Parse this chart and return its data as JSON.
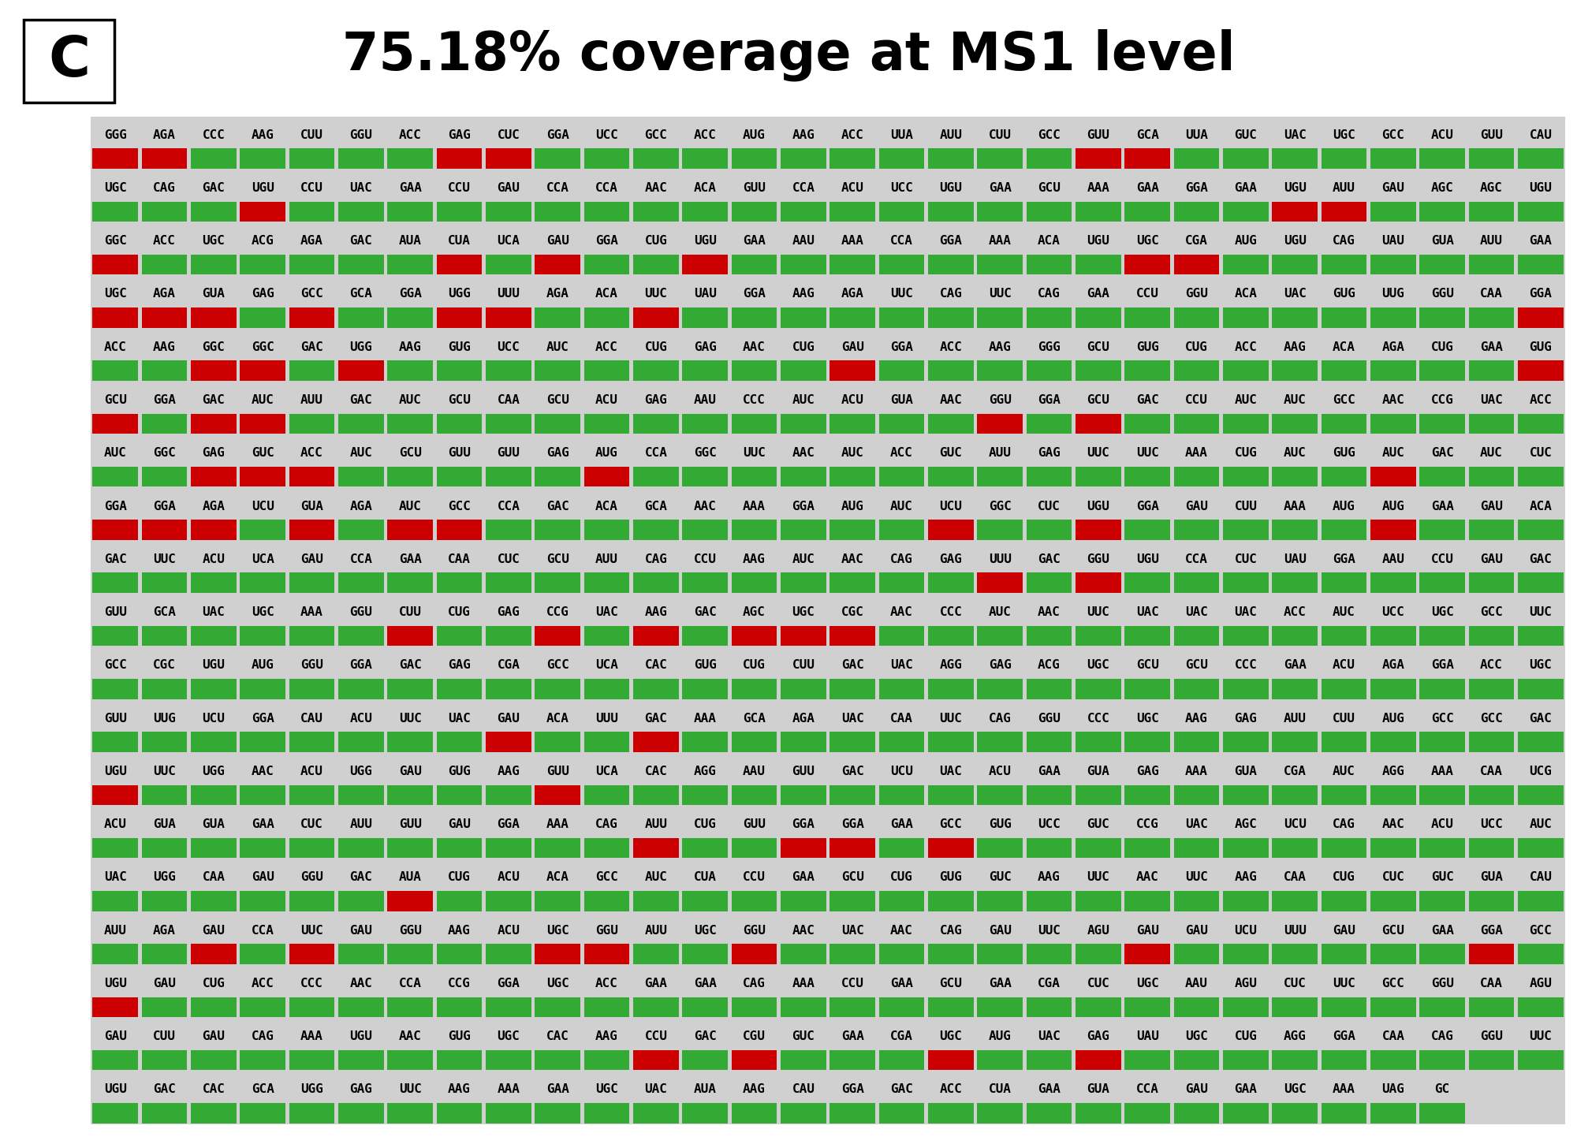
{
  "title": "75.18% coverage at MS1 level",
  "panel_label": "C",
  "bg_color": "#d0d0d0",
  "rows": [
    {
      "codons": [
        "GGG",
        "AGA",
        "CCC",
        "AAG",
        "CUU",
        "GGU",
        "ACC",
        "GAG",
        "CUC",
        "GGA",
        "UCC",
        "GCC",
        "ACC",
        "AUG",
        "AAG",
        "ACC",
        "UUA",
        "AUU",
        "CUU",
        "GCC",
        "GUU",
        "GCA",
        "UUA",
        "GUC",
        "UAC",
        "UGC",
        "GCC",
        "ACU",
        "GUU",
        "CAU"
      ],
      "colors": [
        "red",
        "red",
        "green",
        "green",
        "green",
        "green",
        "green",
        "red",
        "red",
        "green",
        "green",
        "green",
        "green",
        "green",
        "green",
        "green",
        "green",
        "green",
        "green",
        "green",
        "red",
        "red",
        "green",
        "green",
        "green",
        "green",
        "green",
        "green",
        "green",
        "green"
      ]
    },
    {
      "codons": [
        "UGC",
        "CAG",
        "GAC",
        "UGU",
        "CCU",
        "UAC",
        "GAA",
        "CCU",
        "GAU",
        "CCA",
        "CCA",
        "AAC",
        "ACA",
        "GUU",
        "CCA",
        "ACU",
        "UCC",
        "UGU",
        "GAA",
        "GCU",
        "AAA",
        "GAA",
        "GGA",
        "GAA",
        "UGU",
        "AUU",
        "GAU",
        "AGC",
        "AGC",
        "UGU"
      ],
      "colors": [
        "green",
        "green",
        "green",
        "red",
        "green",
        "green",
        "green",
        "green",
        "green",
        "green",
        "green",
        "green",
        "green",
        "green",
        "green",
        "green",
        "green",
        "green",
        "green",
        "green",
        "green",
        "green",
        "green",
        "green",
        "red",
        "red",
        "green",
        "green",
        "green",
        "green"
      ]
    },
    {
      "codons": [
        "GGC",
        "ACC",
        "UGC",
        "ACG",
        "AGA",
        "GAC",
        "AUA",
        "CUA",
        "UCA",
        "GAU",
        "GGA",
        "CUG",
        "UGU",
        "GAA",
        "AAU",
        "AAA",
        "CCA",
        "GGA",
        "AAA",
        "ACA",
        "UGU",
        "UGC",
        "CGA",
        "AUG",
        "UGU",
        "CAG",
        "UAU",
        "GUA",
        "AUU",
        "GAA"
      ],
      "colors": [
        "red",
        "green",
        "green",
        "green",
        "green",
        "green",
        "green",
        "red",
        "green",
        "red",
        "green",
        "green",
        "red",
        "green",
        "green",
        "green",
        "green",
        "green",
        "green",
        "green",
        "green",
        "red",
        "red",
        "green",
        "green",
        "green",
        "green",
        "green",
        "green",
        "green"
      ]
    },
    {
      "codons": [
        "UGC",
        "AGA",
        "GUA",
        "GAG",
        "GCC",
        "GCA",
        "GGA",
        "UGG",
        "UUU",
        "AGA",
        "ACA",
        "UUC",
        "UAU",
        "GGA",
        "AAG",
        "AGA",
        "UUC",
        "CAG",
        "UUC",
        "CAG",
        "GAA",
        "CCU",
        "GGU",
        "ACA",
        "UAC",
        "GUG",
        "UUG",
        "GGU",
        "CAA",
        "GGA"
      ],
      "colors": [
        "red",
        "red",
        "red",
        "green",
        "red",
        "green",
        "green",
        "red",
        "red",
        "green",
        "green",
        "red",
        "green",
        "green",
        "green",
        "green",
        "green",
        "green",
        "green",
        "green",
        "green",
        "green",
        "green",
        "green",
        "green",
        "green",
        "green",
        "green",
        "green",
        "red"
      ]
    },
    {
      "codons": [
        "ACC",
        "AAG",
        "GGC",
        "GGC",
        "GAC",
        "UGG",
        "AAG",
        "GUG",
        "UCC",
        "AUC",
        "ACC",
        "CUG",
        "GAG",
        "AAC",
        "CUG",
        "GAU",
        "GGA",
        "ACC",
        "AAG",
        "GGG",
        "GCU",
        "GUG",
        "CUG",
        "ACC",
        "AAG",
        "ACA",
        "AGA",
        "CUG",
        "GAA",
        "GUG"
      ],
      "colors": [
        "green",
        "green",
        "red",
        "red",
        "green",
        "red",
        "green",
        "green",
        "green",
        "green",
        "green",
        "green",
        "green",
        "green",
        "green",
        "red",
        "green",
        "green",
        "green",
        "green",
        "green",
        "green",
        "green",
        "green",
        "green",
        "green",
        "green",
        "green",
        "green",
        "red"
      ]
    },
    {
      "codons": [
        "GCU",
        "GGA",
        "GAC",
        "AUC",
        "AUU",
        "GAC",
        "AUC",
        "GCU",
        "CAA",
        "GCU",
        "ACU",
        "GAG",
        "AAU",
        "CCC",
        "AUC",
        "ACU",
        "GUA",
        "AAC",
        "GGU",
        "GGA",
        "GCU",
        "GAC",
        "CCU",
        "AUC",
        "AUC",
        "GCC",
        "AAC",
        "CCG",
        "UAC",
        "ACC"
      ],
      "colors": [
        "red",
        "green",
        "red",
        "red",
        "green",
        "green",
        "green",
        "green",
        "green",
        "green",
        "green",
        "green",
        "green",
        "green",
        "green",
        "green",
        "green",
        "green",
        "red",
        "green",
        "red",
        "green",
        "green",
        "green",
        "green",
        "green",
        "green",
        "green",
        "green",
        "green"
      ]
    },
    {
      "codons": [
        "AUC",
        "GGC",
        "GAG",
        "GUC",
        "ACC",
        "AUC",
        "GCU",
        "GUU",
        "GUU",
        "GAG",
        "AUG",
        "CCA",
        "GGC",
        "UUC",
        "AAC",
        "AUC",
        "ACC",
        "GUC",
        "AUU",
        "GAG",
        "UUC",
        "UUC",
        "AAA",
        "CUG",
        "AUC",
        "GUG",
        "AUC",
        "GAC",
        "AUC",
        "CUC"
      ],
      "colors": [
        "green",
        "green",
        "red",
        "red",
        "red",
        "green",
        "green",
        "green",
        "green",
        "green",
        "red",
        "green",
        "green",
        "green",
        "green",
        "green",
        "green",
        "green",
        "green",
        "green",
        "green",
        "green",
        "green",
        "green",
        "green",
        "green",
        "red",
        "green",
        "green",
        "green"
      ]
    },
    {
      "codons": [
        "GGA",
        "GGA",
        "AGA",
        "UCU",
        "GUA",
        "AGA",
        "AUC",
        "GCC",
        "CCA",
        "GAC",
        "ACA",
        "GCA",
        "AAC",
        "AAA",
        "GGA",
        "AUG",
        "AUC",
        "UCU",
        "GGC",
        "CUC",
        "UGU",
        "GGA",
        "GAU",
        "CUU",
        "AAA",
        "AUG",
        "AUG",
        "GAA",
        "GAU",
        "ACA"
      ],
      "colors": [
        "red",
        "red",
        "red",
        "green",
        "red",
        "green",
        "red",
        "red",
        "green",
        "green",
        "green",
        "green",
        "green",
        "green",
        "green",
        "green",
        "green",
        "red",
        "green",
        "green",
        "red",
        "green",
        "green",
        "green",
        "green",
        "green",
        "red",
        "green",
        "green",
        "green"
      ]
    },
    {
      "codons": [
        "GAC",
        "UUC",
        "ACU",
        "UCA",
        "GAU",
        "CCA",
        "GAA",
        "CAA",
        "CUC",
        "GCU",
        "AUU",
        "CAG",
        "CCU",
        "AAG",
        "AUC",
        "AAC",
        "CAG",
        "GAG",
        "UUU",
        "GAC",
        "GGU",
        "UGU",
        "CCA",
        "CUC",
        "UAU",
        "GGA",
        "AAU",
        "CCU",
        "GAU",
        "GAC"
      ],
      "colors": [
        "green",
        "green",
        "green",
        "green",
        "green",
        "green",
        "green",
        "green",
        "green",
        "green",
        "green",
        "green",
        "green",
        "green",
        "green",
        "green",
        "green",
        "green",
        "red",
        "green",
        "red",
        "green",
        "green",
        "green",
        "green",
        "green",
        "green",
        "green",
        "green",
        "green"
      ]
    },
    {
      "codons": [
        "GUU",
        "GCA",
        "UAC",
        "UGC",
        "AAA",
        "GGU",
        "CUU",
        "CUG",
        "GAG",
        "CCG",
        "UAC",
        "AAG",
        "GAC",
        "AGC",
        "UGC",
        "CGC",
        "AAC",
        "CCC",
        "AUC",
        "AAC",
        "UUC",
        "UAC",
        "UAC",
        "UAC",
        "ACC",
        "AUC",
        "UCC",
        "UGC",
        "GCC",
        "UUC"
      ],
      "colors": [
        "green",
        "green",
        "green",
        "green",
        "green",
        "green",
        "red",
        "green",
        "green",
        "red",
        "green",
        "red",
        "green",
        "red",
        "red",
        "red",
        "green",
        "green",
        "green",
        "green",
        "green",
        "green",
        "green",
        "green",
        "green",
        "green",
        "green",
        "green",
        "green",
        "green"
      ]
    },
    {
      "codons": [
        "GCC",
        "CGC",
        "UGU",
        "AUG",
        "GGU",
        "GGA",
        "GAC",
        "GAG",
        "CGA",
        "GCC",
        "UCA",
        "CAC",
        "GUG",
        "CUG",
        "CUU",
        "GAC",
        "UAC",
        "AGG",
        "GAG",
        "ACG",
        "UGC",
        "GCU",
        "GCU",
        "CCC",
        "GAA",
        "ACU",
        "AGA",
        "GGA",
        "ACC",
        "UGC"
      ],
      "colors": [
        "green",
        "green",
        "green",
        "green",
        "green",
        "green",
        "green",
        "green",
        "green",
        "green",
        "green",
        "green",
        "green",
        "green",
        "green",
        "green",
        "green",
        "green",
        "green",
        "green",
        "green",
        "green",
        "green",
        "green",
        "green",
        "green",
        "green",
        "green",
        "green",
        "green"
      ]
    },
    {
      "codons": [
        "GUU",
        "UUG",
        "UCU",
        "GGA",
        "CAU",
        "ACU",
        "UUC",
        "UAC",
        "GAU",
        "ACA",
        "UUU",
        "GAC",
        "AAA",
        "GCA",
        "AGA",
        "UAC",
        "CAA",
        "UUC",
        "CAG",
        "GGU",
        "CCC",
        "UGC",
        "AAG",
        "GAG",
        "AUU",
        "CUU",
        "AUG",
        "GCC",
        "GCC",
        "GAC"
      ],
      "colors": [
        "green",
        "green",
        "green",
        "green",
        "green",
        "green",
        "green",
        "green",
        "red",
        "green",
        "green",
        "red",
        "green",
        "green",
        "green",
        "green",
        "green",
        "green",
        "green",
        "green",
        "green",
        "green",
        "green",
        "green",
        "green",
        "green",
        "green",
        "green",
        "green",
        "green"
      ]
    },
    {
      "codons": [
        "UGU",
        "UUC",
        "UGG",
        "AAC",
        "ACU",
        "UGG",
        "GAU",
        "GUG",
        "AAG",
        "GUU",
        "UCA",
        "CAC",
        "AGG",
        "AAU",
        "GUU",
        "GAC",
        "UCU",
        "UAC",
        "ACU",
        "GAA",
        "GUA",
        "GAG",
        "AAA",
        "GUA",
        "CGA",
        "AUC",
        "AGG",
        "AAA",
        "CAA",
        "UCG"
      ],
      "colors": [
        "red",
        "green",
        "green",
        "green",
        "green",
        "green",
        "green",
        "green",
        "green",
        "red",
        "green",
        "green",
        "green",
        "green",
        "green",
        "green",
        "green",
        "green",
        "green",
        "green",
        "green",
        "green",
        "green",
        "green",
        "green",
        "green",
        "green",
        "green",
        "green",
        "green"
      ]
    },
    {
      "codons": [
        "ACU",
        "GUA",
        "GUA",
        "GAA",
        "CUC",
        "AUU",
        "GUU",
        "GAU",
        "GGA",
        "AAA",
        "CAG",
        "AUU",
        "CUG",
        "GUU",
        "GGA",
        "GGA",
        "GAA",
        "GCC",
        "GUG",
        "UCC",
        "GUC",
        "CCG",
        "UAC",
        "AGC",
        "UCU",
        "CAG",
        "AAC",
        "ACU",
        "UCC",
        "AUC"
      ],
      "colors": [
        "green",
        "green",
        "green",
        "green",
        "green",
        "green",
        "green",
        "green",
        "green",
        "green",
        "green",
        "red",
        "green",
        "green",
        "red",
        "red",
        "green",
        "red",
        "green",
        "green",
        "green",
        "green",
        "green",
        "green",
        "green",
        "green",
        "green",
        "green",
        "green",
        "green"
      ]
    },
    {
      "codons": [
        "UAC",
        "UGG",
        "CAA",
        "GAU",
        "GGU",
        "GAC",
        "AUA",
        "CUG",
        "ACU",
        "ACA",
        "GCC",
        "AUC",
        "CUA",
        "CCU",
        "GAA",
        "GCU",
        "CUG",
        "GUG",
        "GUC",
        "AAG",
        "UUC",
        "AAC",
        "UUC",
        "AAG",
        "CAA",
        "CUG",
        "CUC",
        "GUC",
        "GUA",
        "CAU"
      ],
      "colors": [
        "green",
        "green",
        "green",
        "green",
        "green",
        "green",
        "red",
        "green",
        "green",
        "green",
        "green",
        "green",
        "green",
        "green",
        "green",
        "green",
        "green",
        "green",
        "green",
        "green",
        "green",
        "green",
        "green",
        "green",
        "green",
        "green",
        "green",
        "green",
        "green",
        "green"
      ]
    },
    {
      "codons": [
        "AUU",
        "AGA",
        "GAU",
        "CCA",
        "UUC",
        "GAU",
        "GGU",
        "AAG",
        "ACU",
        "UGC",
        "GGU",
        "AUU",
        "UGC",
        "GGU",
        "AAC",
        "UAC",
        "AAC",
        "CAG",
        "GAU",
        "UUC",
        "AGU",
        "GAU",
        "GAU",
        "UCU",
        "UUU",
        "GAU",
        "GCU",
        "GAA",
        "GGA",
        "GCC"
      ],
      "colors": [
        "green",
        "green",
        "red",
        "green",
        "red",
        "green",
        "green",
        "green",
        "green",
        "red",
        "red",
        "green",
        "green",
        "red",
        "green",
        "green",
        "green",
        "green",
        "green",
        "green",
        "green",
        "red",
        "green",
        "green",
        "green",
        "green",
        "green",
        "green",
        "red",
        "green"
      ]
    },
    {
      "codons": [
        "UGU",
        "GAU",
        "CUG",
        "ACC",
        "CCC",
        "AAC",
        "CCA",
        "CCG",
        "GGA",
        "UGC",
        "ACC",
        "GAA",
        "GAA",
        "CAG",
        "AAA",
        "CCU",
        "GAA",
        "GCU",
        "GAA",
        "CGA",
        "CUC",
        "UGC",
        "AAU",
        "AGU",
        "CUC",
        "UUC",
        "GCC",
        "GGU",
        "CAA",
        "AGU"
      ],
      "colors": [
        "red",
        "green",
        "green",
        "green",
        "green",
        "green",
        "green",
        "green",
        "green",
        "green",
        "green",
        "green",
        "green",
        "green",
        "green",
        "green",
        "green",
        "green",
        "green",
        "green",
        "green",
        "green",
        "green",
        "green",
        "green",
        "green",
        "green",
        "green",
        "green",
        "green"
      ]
    },
    {
      "codons": [
        "GAU",
        "CUU",
        "GAU",
        "CAG",
        "AAA",
        "UGU",
        "AAC",
        "GUG",
        "UGC",
        "CAC",
        "AAG",
        "CCU",
        "GAC",
        "CGU",
        "GUC",
        "GAA",
        "CGA",
        "UGC",
        "AUG",
        "UAC",
        "GAG",
        "UAU",
        "UGC",
        "CUG",
        "AGG",
        "GGA",
        "CAA",
        "CAG",
        "GGU",
        "UUC"
      ],
      "colors": [
        "green",
        "green",
        "green",
        "green",
        "green",
        "green",
        "green",
        "green",
        "green",
        "green",
        "green",
        "red",
        "green",
        "red",
        "green",
        "green",
        "green",
        "red",
        "green",
        "green",
        "red",
        "green",
        "green",
        "green",
        "green",
        "green",
        "green",
        "green",
        "green",
        "green"
      ]
    },
    {
      "codons": [
        "UGU",
        "GAC",
        "CAC",
        "GCA",
        "UGG",
        "GAG",
        "UUC",
        "AAG",
        "AAA",
        "GAA",
        "UGC",
        "UAC",
        "AUA",
        "AAG",
        "CAU",
        "GGA",
        "GAC",
        "ACC",
        "CUA",
        "GAA",
        "GUA",
        "CCA",
        "GAU",
        "GAA",
        "UGC",
        "AAA",
        "UAG",
        "GC"
      ],
      "colors": [
        "green",
        "green",
        "green",
        "green",
        "green",
        "green",
        "green",
        "green",
        "green",
        "green",
        "green",
        "green",
        "green",
        "green",
        "green",
        "green",
        "green",
        "green",
        "green",
        "green",
        "green",
        "green",
        "green",
        "green",
        "green",
        "green",
        "green",
        "green"
      ]
    }
  ]
}
